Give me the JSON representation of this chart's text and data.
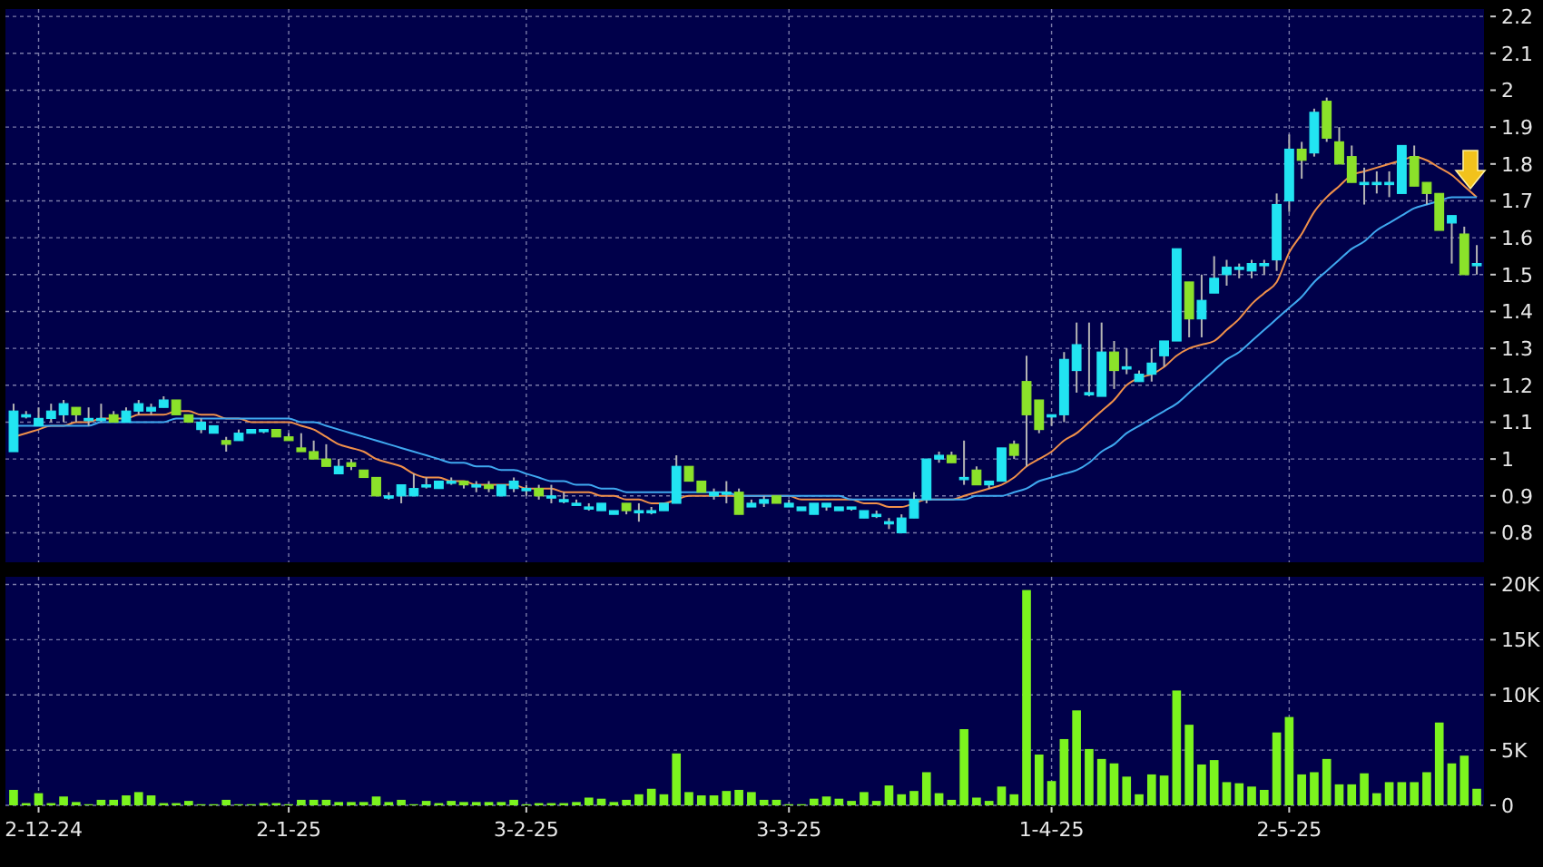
{
  "chart_data": [
    {
      "type": "candlestick",
      "categories": [
        null,
        null,
        null,
        null,
        null,
        null,
        null,
        null,
        null,
        null,
        null,
        null,
        null,
        null,
        null,
        null,
        null,
        null,
        null,
        null,
        null,
        null,
        null,
        null,
        null,
        null,
        null,
        null,
        null,
        null,
        null,
        null,
        null,
        null,
        null,
        null,
        null,
        null,
        null,
        null,
        null,
        null,
        null,
        null,
        null,
        null,
        null,
        null,
        null,
        null,
        null,
        null,
        null,
        null,
        null,
        null,
        null,
        null,
        null,
        null,
        null,
        null,
        null,
        null,
        null,
        null,
        null,
        null,
        null,
        null,
        null,
        null,
        null,
        null,
        null,
        null,
        null,
        null,
        null,
        null,
        null,
        null,
        null,
        null,
        null,
        null,
        null,
        null,
        null,
        null,
        null,
        null,
        null,
        null,
        null,
        null,
        null,
        null,
        null,
        null,
        null,
        null,
        null,
        null,
        null,
        null,
        null,
        null,
        null,
        null,
        null,
        null,
        null,
        null,
        null,
        null,
        null,
        null
      ],
      "ohlc": [
        [
          1.02,
          1.15,
          1.02,
          1.13
        ],
        [
          1.12,
          1.13,
          1.11,
          1.12
        ],
        [
          1.09,
          1.14,
          1.09,
          1.11
        ],
        [
          1.11,
          1.15,
          1.1,
          1.13
        ],
        [
          1.12,
          1.16,
          1.1,
          1.15
        ],
        [
          1.14,
          1.14,
          1.1,
          1.12
        ],
        [
          1.11,
          1.14,
          1.09,
          1.11
        ],
        [
          1.11,
          1.15,
          1.1,
          1.11
        ],
        [
          1.12,
          1.13,
          1.1,
          1.1
        ],
        [
          1.1,
          1.14,
          1.1,
          1.13
        ],
        [
          1.13,
          1.16,
          1.12,
          1.15
        ],
        [
          1.13,
          1.15,
          1.12,
          1.14
        ],
        [
          1.14,
          1.17,
          1.14,
          1.16
        ],
        [
          1.16,
          1.16,
          1.12,
          1.12
        ],
        [
          1.12,
          1.12,
          1.1,
          1.1
        ],
        [
          1.08,
          1.11,
          1.07,
          1.1
        ],
        [
          1.07,
          1.09,
          1.07,
          1.09
        ],
        [
          1.05,
          1.06,
          1.02,
          1.04
        ],
        [
          1.05,
          1.08,
          1.05,
          1.07
        ],
        [
          1.07,
          1.08,
          1.07,
          1.08
        ],
        [
          1.08,
          1.08,
          1.07,
          1.08
        ],
        [
          1.08,
          1.08,
          1.06,
          1.06
        ],
        [
          1.06,
          1.07,
          1.05,
          1.05
        ],
        [
          1.03,
          1.07,
          1.02,
          1.02
        ],
        [
          1.02,
          1.05,
          1.0,
          1.0
        ],
        [
          1.0,
          1.04,
          0.98,
          0.98
        ],
        [
          0.96,
          1.0,
          0.96,
          0.98
        ],
        [
          0.99,
          1.0,
          0.97,
          0.98
        ],
        [
          0.97,
          0.97,
          0.95,
          0.95
        ],
        [
          0.95,
          0.95,
          0.9,
          0.9
        ],
        [
          0.9,
          0.91,
          0.89,
          0.9
        ],
        [
          0.9,
          0.93,
          0.88,
          0.93
        ],
        [
          0.9,
          0.96,
          0.9,
          0.92
        ],
        [
          0.93,
          0.95,
          0.92,
          0.93
        ],
        [
          0.92,
          0.94,
          0.92,
          0.94
        ],
        [
          0.94,
          0.95,
          0.93,
          0.94
        ],
        [
          0.94,
          0.94,
          0.92,
          0.93
        ],
        [
          0.93,
          0.94,
          0.91,
          0.93
        ],
        [
          0.93,
          0.94,
          0.91,
          0.92
        ],
        [
          0.9,
          0.93,
          0.9,
          0.93
        ],
        [
          0.92,
          0.95,
          0.91,
          0.94
        ],
        [
          0.92,
          0.93,
          0.9,
          0.92
        ],
        [
          0.92,
          0.93,
          0.89,
          0.9
        ],
        [
          0.9,
          0.93,
          0.88,
          0.9
        ],
        [
          0.89,
          0.91,
          0.88,
          0.89
        ],
        [
          0.88,
          0.89,
          0.88,
          0.88
        ],
        [
          0.87,
          0.88,
          0.86,
          0.87
        ],
        [
          0.86,
          0.88,
          0.86,
          0.88
        ],
        [
          0.85,
          0.86,
          0.85,
          0.86
        ],
        [
          0.88,
          0.88,
          0.85,
          0.86
        ],
        [
          0.86,
          0.88,
          0.83,
          0.86
        ],
        [
          0.86,
          0.87,
          0.85,
          0.86
        ],
        [
          0.86,
          0.88,
          0.86,
          0.88
        ],
        [
          0.88,
          1.01,
          0.88,
          0.98
        ],
        [
          0.98,
          0.98,
          0.94,
          0.94
        ],
        [
          0.94,
          0.94,
          0.91,
          0.91
        ],
        [
          0.9,
          0.92,
          0.89,
          0.91
        ],
        [
          0.91,
          0.94,
          0.88,
          0.91
        ],
        [
          0.91,
          0.92,
          0.85,
          0.85
        ],
        [
          0.87,
          0.89,
          0.87,
          0.88
        ],
        [
          0.88,
          0.9,
          0.87,
          0.89
        ],
        [
          0.9,
          0.9,
          0.88,
          0.88
        ],
        [
          0.87,
          0.89,
          0.87,
          0.88
        ],
        [
          0.86,
          0.87,
          0.86,
          0.87
        ],
        [
          0.85,
          0.88,
          0.85,
          0.88
        ],
        [
          0.87,
          0.88,
          0.86,
          0.88
        ],
        [
          0.86,
          0.87,
          0.86,
          0.87
        ],
        [
          0.87,
          0.87,
          0.86,
          0.87
        ],
        [
          0.84,
          0.86,
          0.84,
          0.86
        ],
        [
          0.85,
          0.86,
          0.84,
          0.85
        ],
        [
          0.83,
          0.84,
          0.81,
          0.83
        ],
        [
          0.8,
          0.85,
          0.8,
          0.84
        ],
        [
          0.84,
          0.91,
          0.84,
          0.89
        ],
        [
          0.89,
          1.0,
          0.88,
          1.0
        ],
        [
          1.0,
          1.02,
          0.99,
          1.01
        ],
        [
          1.01,
          1.02,
          0.99,
          0.99
        ],
        [
          0.95,
          1.05,
          0.93,
          0.95
        ],
        [
          0.97,
          0.98,
          0.93,
          0.93
        ],
        [
          0.93,
          0.94,
          0.92,
          0.94
        ],
        [
          0.94,
          1.03,
          0.94,
          1.03
        ],
        [
          1.04,
          1.05,
          1.0,
          1.01
        ],
        [
          1.21,
          1.28,
          0.98,
          1.12
        ],
        [
          1.16,
          1.16,
          1.07,
          1.08
        ],
        [
          1.12,
          1.12,
          1.09,
          1.12
        ],
        [
          1.12,
          1.29,
          1.1,
          1.27
        ],
        [
          1.24,
          1.37,
          1.18,
          1.31
        ],
        [
          1.18,
          1.37,
          1.17,
          1.18
        ],
        [
          1.17,
          1.37,
          1.17,
          1.29
        ],
        [
          1.29,
          1.32,
          1.19,
          1.24
        ],
        [
          1.25,
          1.3,
          1.23,
          1.25
        ],
        [
          1.21,
          1.24,
          1.21,
          1.23
        ],
        [
          1.23,
          1.3,
          1.21,
          1.26
        ],
        [
          1.28,
          1.32,
          1.25,
          1.32
        ],
        [
          1.32,
          1.57,
          1.32,
          1.57
        ],
        [
          1.48,
          1.48,
          1.33,
          1.38
        ],
        [
          1.38,
          1.5,
          1.33,
          1.43
        ],
        [
          1.45,
          1.55,
          1.45,
          1.49
        ],
        [
          1.5,
          1.54,
          1.47,
          1.52
        ],
        [
          1.52,
          1.53,
          1.49,
          1.52
        ],
        [
          1.51,
          1.54,
          1.49,
          1.53
        ],
        [
          1.53,
          1.54,
          1.5,
          1.53
        ],
        [
          1.54,
          1.72,
          1.51,
          1.69
        ],
        [
          1.7,
          1.88,
          1.67,
          1.84
        ],
        [
          1.84,
          1.86,
          1.76,
          1.81
        ],
        [
          1.83,
          1.95,
          1.82,
          1.94
        ],
        [
          1.97,
          1.98,
          1.86,
          1.87
        ],
        [
          1.86,
          1.9,
          1.8,
          1.8
        ],
        [
          1.82,
          1.85,
          1.75,
          1.75
        ],
        [
          1.75,
          1.79,
          1.69,
          1.75
        ],
        [
          1.75,
          1.78,
          1.72,
          1.75
        ],
        [
          1.75,
          1.78,
          1.71,
          1.75
        ],
        [
          1.72,
          1.85,
          1.72,
          1.85
        ],
        [
          1.82,
          1.85,
          1.74,
          1.74
        ],
        [
          1.75,
          1.75,
          1.69,
          1.72
        ],
        [
          1.72,
          1.72,
          1.62,
          1.62
        ],
        [
          1.64,
          1.66,
          1.53,
          1.66
        ],
        [
          1.61,
          1.63,
          1.5,
          1.5
        ],
        [
          1.53,
          1.58,
          1.5,
          1.53
        ]
      ],
      "colors": [
        "#22e4f2",
        "#22e4f2",
        "#22e4f2",
        "#22e4f2",
        "#22e4f2",
        "#8be22a",
        "#22e4f2",
        "#22e4f2",
        "#8be22a",
        "#22e4f2",
        "#22e4f2",
        "#22e4f2",
        "#22e4f2",
        "#8be22a",
        "#8be22a",
        "#22e4f2",
        "#22e4f2",
        "#8be22a",
        "#22e4f2",
        "#22e4f2",
        "#22e4f2",
        "#8be22a",
        "#8be22a",
        "#8be22a",
        "#8be22a",
        "#8be22a",
        "#22e4f2",
        "#8be22a",
        "#8be22a",
        "#8be22a",
        "#22e4f2",
        "#22e4f2",
        "#22e4f2",
        "#22e4f2",
        "#22e4f2",
        "#22e4f2",
        "#8be22a",
        "#22e4f2",
        "#8be22a",
        "#22e4f2",
        "#22e4f2",
        "#22e4f2",
        "#8be22a",
        "#22e4f2",
        "#22e4f2",
        "#22e4f2",
        "#22e4f2",
        "#22e4f2",
        "#22e4f2",
        "#8be22a",
        "#22e4f2",
        "#22e4f2",
        "#22e4f2",
        "#22e4f2",
        "#8be22a",
        "#8be22a",
        "#22e4f2",
        "#22e4f2",
        "#8be22a",
        "#22e4f2",
        "#22e4f2",
        "#8be22a",
        "#22e4f2",
        "#22e4f2",
        "#22e4f2",
        "#22e4f2",
        "#22e4f2",
        "#22e4f2",
        "#22e4f2",
        "#22e4f2",
        "#22e4f2",
        "#22e4f2",
        "#22e4f2",
        "#22e4f2",
        "#22e4f2",
        "#8be22a",
        "#22e4f2",
        "#8be22a",
        "#22e4f2",
        "#22e4f2",
        "#8be22a",
        "#8be22a",
        "#8be22a",
        "#22e4f2",
        "#22e4f2",
        "#22e4f2",
        "#22e4f2",
        "#22e4f2",
        "#8be22a",
        "#22e4f2",
        "#22e4f2",
        "#22e4f2",
        "#22e4f2",
        "#22e4f2",
        "#8be22a",
        "#22e4f2",
        "#22e4f2",
        "#22e4f2",
        "#22e4f2",
        "#22e4f2",
        "#22e4f2",
        "#22e4f2",
        "#22e4f2",
        "#8be22a",
        "#22e4f2",
        "#8be22a",
        "#8be22a",
        "#8be22a",
        "#22e4f2",
        "#22e4f2",
        "#22e4f2",
        "#22e4f2",
        "#8be22a",
        "#8be22a",
        "#8be22a",
        "#22e4f2",
        "#8be22a",
        "#22e4f2"
      ],
      "series": [
        {
          "type": "line",
          "color": "#f0904a",
          "values": [
            1.06,
            1.07,
            1.08,
            1.09,
            1.09,
            1.1,
            1.1,
            1.11,
            1.11,
            1.11,
            1.12,
            1.12,
            1.12,
            1.13,
            1.13,
            1.12,
            1.12,
            1.11,
            1.11,
            1.1,
            1.1,
            1.1,
            1.1,
            1.09,
            1.08,
            1.06,
            1.04,
            1.03,
            1.02,
            1.0,
            0.99,
            0.98,
            0.96,
            0.95,
            0.95,
            0.94,
            0.94,
            0.93,
            0.93,
            0.93,
            0.93,
            0.92,
            0.92,
            0.92,
            0.91,
            0.91,
            0.91,
            0.9,
            0.9,
            0.89,
            0.89,
            0.88,
            0.88,
            0.89,
            0.9,
            0.9,
            0.9,
            0.9,
            0.9,
            0.9,
            0.9,
            0.9,
            0.9,
            0.89,
            0.89,
            0.89,
            0.89,
            0.89,
            0.88,
            0.88,
            0.87,
            0.87,
            0.88,
            0.89,
            0.89,
            0.89,
            0.9,
            0.91,
            0.92,
            0.93,
            0.95,
            0.98,
            1.0,
            1.02,
            1.05,
            1.07,
            1.1,
            1.13,
            1.16,
            1.2,
            1.22,
            1.23,
            1.25,
            1.28,
            1.3,
            1.31,
            1.32,
            1.35,
            1.38,
            1.42,
            1.45,
            1.48,
            1.56,
            1.61,
            1.67,
            1.71,
            1.74,
            1.77,
            1.78,
            1.79,
            1.8,
            1.81,
            1.82,
            1.81,
            1.79,
            1.77,
            1.74,
            1.71
          ]
        },
        {
          "type": "line",
          "color": "#3fa8f0",
          "values": [
            1.09,
            1.09,
            1.09,
            1.09,
            1.09,
            1.09,
            1.09,
            1.1,
            1.1,
            1.1,
            1.1,
            1.1,
            1.1,
            1.11,
            1.11,
            1.11,
            1.11,
            1.11,
            1.11,
            1.11,
            1.11,
            1.11,
            1.11,
            1.1,
            1.1,
            1.09,
            1.08,
            1.07,
            1.06,
            1.05,
            1.04,
            1.03,
            1.02,
            1.01,
            1.0,
            0.99,
            0.99,
            0.98,
            0.98,
            0.97,
            0.97,
            0.96,
            0.95,
            0.94,
            0.94,
            0.93,
            0.93,
            0.92,
            0.92,
            0.91,
            0.91,
            0.91,
            0.91,
            0.91,
            0.91,
            0.91,
            0.91,
            0.91,
            0.9,
            0.9,
            0.9,
            0.9,
            0.9,
            0.9,
            0.9,
            0.9,
            0.9,
            0.89,
            0.89,
            0.89,
            0.89,
            0.89,
            0.89,
            0.89,
            0.89,
            0.89,
            0.89,
            0.9,
            0.9,
            0.9,
            0.91,
            0.92,
            0.94,
            0.95,
            0.96,
            0.97,
            0.99,
            1.02,
            1.04,
            1.07,
            1.09,
            1.11,
            1.13,
            1.15,
            1.18,
            1.21,
            1.24,
            1.27,
            1.29,
            1.32,
            1.35,
            1.38,
            1.41,
            1.44,
            1.48,
            1.51,
            1.54,
            1.57,
            1.59,
            1.62,
            1.64,
            1.66,
            1.68,
            1.69,
            1.7,
            1.71,
            1.71,
            1.71
          ]
        }
      ],
      "ylim": [
        0.72,
        2.22
      ],
      "yticks": [
        0.8,
        0.9,
        1,
        1.1,
        1.2,
        1.3,
        1.4,
        1.5,
        1.6,
        1.7,
        1.8,
        1.9,
        2,
        2.1,
        2.2
      ],
      "grid": true,
      "tick_labels": "y"
    },
    {
      "type": "bar",
      "categories": [
        null,
        null,
        "2-12-24",
        null,
        null,
        null,
        null,
        null,
        null,
        null,
        null,
        null,
        null,
        null,
        null,
        null,
        null,
        null,
        null,
        null,
        null,
        null,
        "2-1-25",
        null,
        null,
        null,
        null,
        null,
        null,
        null,
        null,
        null,
        null,
        null,
        null,
        null,
        null,
        null,
        null,
        null,
        null,
        "3-2-25",
        null,
        null,
        null,
        null,
        null,
        null,
        null,
        null,
        null,
        null,
        null,
        null,
        null,
        null,
        null,
        null,
        null,
        null,
        null,
        null,
        "3-3-25",
        null,
        null,
        null,
        null,
        null,
        null,
        null,
        null,
        null,
        null,
        null,
        null,
        null,
        null,
        null,
        null,
        null,
        null,
        null,
        null,
        "1-4-25",
        null,
        null,
        null,
        null,
        null,
        null,
        null,
        null,
        null,
        null,
        null,
        null,
        null,
        null,
        null,
        null,
        null,
        null,
        "2-5-25",
        null,
        null,
        null,
        null,
        null,
        null,
        null,
        null,
        null,
        null,
        null,
        null,
        null,
        null,
        null
      ],
      "values": [
        1400,
        200,
        1100,
        200,
        800,
        300,
        100,
        500,
        500,
        900,
        1200,
        900,
        200,
        200,
        400,
        100,
        100,
        500,
        100,
        100,
        200,
        200,
        100,
        500,
        500,
        500,
        300,
        300,
        300,
        800,
        300,
        500,
        100,
        400,
        200,
        400,
        300,
        300,
        300,
        300,
        500,
        100,
        200,
        200,
        200,
        300,
        700,
        600,
        300,
        500,
        1000,
        1500,
        1000,
        4700,
        1200,
        900,
        900,
        1300,
        1400,
        1200,
        500,
        500,
        100,
        100,
        600,
        800,
        600,
        400,
        1200,
        400,
        1800,
        1000,
        1300,
        3000,
        1100,
        500,
        6900,
        700,
        400,
        1700,
        1000,
        19500,
        4600,
        2200,
        6000,
        8600,
        5100,
        4200,
        3800,
        2600,
        1000,
        2800,
        2700,
        10400,
        7300,
        3700,
        4100,
        2100,
        2000,
        1700,
        1400,
        6600,
        8000,
        2800,
        3000,
        4200,
        1900,
        1900,
        2900,
        1100,
        2100,
        2100,
        2100,
        3000,
        7500,
        3800,
        4500,
        1500
      ],
      "color": "#7cf41e",
      "ylim": [
        0,
        20700
      ],
      "yticks": [
        0,
        {
          "value": 5000,
          "label": "5K"
        },
        {
          "value": 10000,
          "label": "10K"
        },
        {
          "value": 15000,
          "label": "15K"
        },
        {
          "value": 20000,
          "label": "20K"
        }
      ],
      "grid": true
    }
  ]
}
